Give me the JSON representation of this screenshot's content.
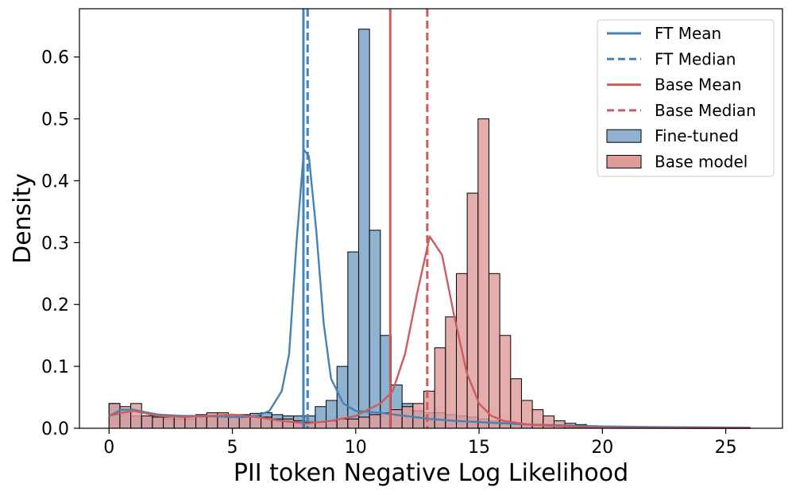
{
  "chart_data": {
    "type": "histogram",
    "xlabel": "PII token Negative Log Likelihood",
    "ylabel": "Density",
    "xlim": [
      -1.2,
      27.3
    ],
    "ylim": [
      0,
      0.678
    ],
    "xticks": [
      0,
      5,
      10,
      15,
      20,
      25
    ],
    "yticks": [
      0.0,
      0.1,
      0.2,
      0.3,
      0.4,
      0.5,
      0.6
    ],
    "xtick_labels": [
      "0",
      "5",
      "10",
      "15",
      "20",
      "25"
    ],
    "ytick_labels": [
      "0.0",
      "0.1",
      "0.2",
      "0.3",
      "0.4",
      "0.5",
      "0.6"
    ],
    "grid": false,
    "legend_position": "top-right",
    "bin_start": 0.0,
    "bin_width": 0.44,
    "series": [
      {
        "name": "Fine-tuned",
        "color": "#4682b4",
        "fill": "#8fb2d1",
        "densities": [
          0.04,
          0.03,
          0.02,
          0.02,
          0.02,
          0.015,
          0.015,
          0.015,
          0.018,
          0.018,
          0.02,
          0.02,
          0.022,
          0.024,
          0.025,
          0.022,
          0.02,
          0.02,
          0.02,
          0.035,
          0.045,
          0.1,
          0.285,
          0.645,
          0.32,
          0.15,
          0.07,
          0.04,
          0.028,
          0.025,
          0.025,
          0.022,
          0.02,
          0.018,
          0.015,
          0.012,
          0.01,
          0.008,
          0.006,
          0.005,
          0.004,
          0.003,
          0.003,
          0.002,
          0.002,
          0.001,
          0.001,
          0.001,
          0.001
        ],
        "kde_x": [
          0,
          0.5,
          1,
          2,
          3,
          4,
          5,
          5.5,
          6,
          6.5,
          7,
          7.3,
          7.6,
          7.9,
          8.1,
          8.4,
          8.7,
          9,
          9.5,
          10,
          11,
          12,
          13,
          14,
          15,
          16,
          17,
          18,
          20,
          22,
          26
        ],
        "kde_y": [
          0.02,
          0.03,
          0.03,
          0.022,
          0.02,
          0.02,
          0.018,
          0.018,
          0.02,
          0.028,
          0.06,
          0.12,
          0.3,
          0.45,
          0.44,
          0.32,
          0.17,
          0.08,
          0.04,
          0.028,
          0.025,
          0.02,
          0.015,
          0.012,
          0.01,
          0.008,
          0.006,
          0.005,
          0.003,
          0.002,
          0.001
        ]
      },
      {
        "name": "Base model",
        "color": "#cd5c5c",
        "fill": "#e09b9b",
        "densities": [
          0.04,
          0.035,
          0.04,
          0.02,
          0.018,
          0.018,
          0.018,
          0.02,
          0.022,
          0.025,
          0.025,
          0.022,
          0.02,
          0.02,
          0.018,
          0.015,
          0.015,
          0.012,
          0.01,
          0.01,
          0.012,
          0.015,
          0.015,
          0.018,
          0.022,
          0.025,
          0.03,
          0.035,
          0.04,
          0.06,
          0.13,
          0.18,
          0.25,
          0.38,
          0.5,
          0.25,
          0.15,
          0.08,
          0.045,
          0.03,
          0.02,
          0.012,
          0.008,
          0.006,
          0.004,
          0.003,
          0.002,
          0.001,
          0.001
        ],
        "kde_x": [
          0,
          0.5,
          1,
          2,
          3,
          4,
          5,
          6,
          7,
          8,
          9,
          10,
          10.5,
          11,
          11.5,
          12,
          12.5,
          13,
          13.5,
          14,
          14.5,
          15,
          15.5,
          16,
          17,
          18,
          19,
          20,
          22,
          26
        ],
        "kde_y": [
          0.02,
          0.025,
          0.028,
          0.02,
          0.018,
          0.02,
          0.022,
          0.018,
          0.012,
          0.008,
          0.012,
          0.02,
          0.03,
          0.04,
          0.06,
          0.12,
          0.22,
          0.31,
          0.28,
          0.18,
          0.09,
          0.04,
          0.02,
          0.012,
          0.006,
          0.004,
          0.002,
          0.001,
          0.0005,
          0.0002
        ]
      }
    ],
    "reference_lines": [
      {
        "name": "FT Mean",
        "x": 7.88,
        "color": "#4682b4",
        "style": "solid"
      },
      {
        "name": "FT Median",
        "x": 8.05,
        "color": "#4682b4",
        "style": "dashed"
      },
      {
        "name": "Base Mean",
        "x": 11.4,
        "color": "#cd5c5c",
        "style": "solid"
      },
      {
        "name": "Base Median",
        "x": 12.9,
        "color": "#cd5c5c",
        "style": "dashed"
      }
    ],
    "legend": [
      {
        "label": "FT Mean",
        "kind": "line",
        "color": "#4682b4",
        "style": "solid"
      },
      {
        "label": "FT Median",
        "kind": "line",
        "color": "#4682b4",
        "style": "dashed"
      },
      {
        "label": "Base Mean",
        "kind": "line",
        "color": "#cd5c5c",
        "style": "solid"
      },
      {
        "label": "Base Median",
        "kind": "line",
        "color": "#cd5c5c",
        "style": "dashed"
      },
      {
        "label": "Fine-tuned",
        "kind": "patch",
        "color": "#8fb2d1"
      },
      {
        "label": "Base model",
        "kind": "patch",
        "color": "#e09b9b"
      }
    ]
  }
}
